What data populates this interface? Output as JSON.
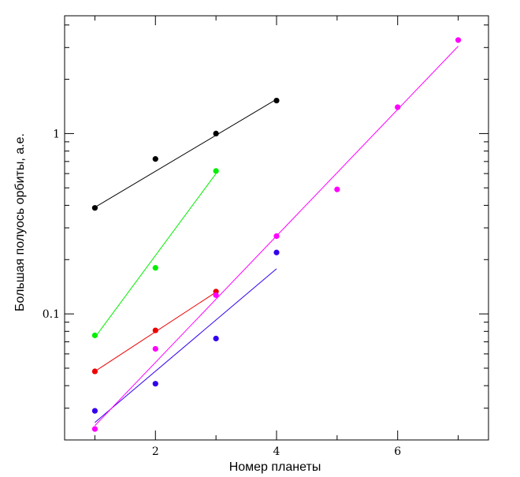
{
  "chart_data": {
    "type": "scatter",
    "title": "",
    "xlabel": "Номер планеты",
    "ylabel": "Большая полуось орбиты, а.е.",
    "xlim": [
      0.5,
      7.5
    ],
    "ylim": [
      0.02,
      4.5
    ],
    "yscale": "log",
    "x_ticks": [
      2,
      4,
      6
    ],
    "x_tick_labels": [
      "2",
      "4",
      "6"
    ],
    "y_ticks": [
      0.1,
      1
    ],
    "y_tick_labels": [
      "0.1",
      "1"
    ],
    "grid": false,
    "legend": "none",
    "series": [
      {
        "color": "#000000",
        "points": [
          [
            1,
            0.387
          ],
          [
            2,
            0.723
          ],
          [
            3,
            1.0
          ],
          [
            4,
            1.524
          ]
        ],
        "fit": [
          [
            1,
            0.39
          ],
          [
            4,
            1.55
          ]
        ]
      },
      {
        "color": "#00ee00",
        "points": [
          [
            1,
            0.076
          ],
          [
            2,
            0.18
          ],
          [
            3,
            0.62
          ]
        ],
        "fit": [
          [
            1,
            0.074
          ],
          [
            3,
            0.6
          ]
        ]
      },
      {
        "color": "#ee0000",
        "points": [
          [
            1,
            0.048
          ],
          [
            2,
            0.081
          ],
          [
            3,
            0.133
          ]
        ],
        "fit": [
          [
            1,
            0.048
          ],
          [
            3,
            0.132
          ]
        ]
      },
      {
        "color": "#3300ee",
        "points": [
          [
            1,
            0.029
          ],
          [
            2,
            0.041
          ],
          [
            3,
            0.073
          ],
          [
            4,
            0.219
          ]
        ],
        "fit": [
          [
            1,
            0.025
          ],
          [
            4,
            0.178
          ]
        ]
      },
      {
        "color": "#ff00ff",
        "points": [
          [
            1,
            0.023
          ],
          [
            2,
            0.064
          ],
          [
            3,
            0.127
          ],
          [
            4,
            0.27
          ],
          [
            5,
            0.49
          ],
          [
            6,
            1.4
          ],
          [
            7,
            3.3
          ]
        ],
        "fit": [
          [
            1,
            0.024
          ],
          [
            7,
            3.05
          ]
        ]
      }
    ]
  }
}
